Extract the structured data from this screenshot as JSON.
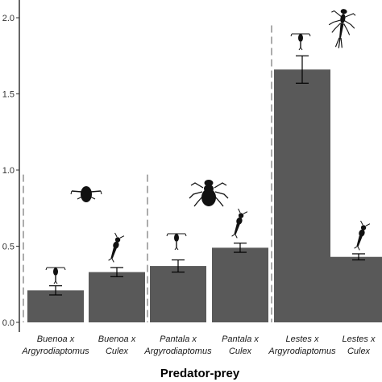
{
  "chart_data": {
    "type": "bar",
    "title": "",
    "xlabel": "Predator-prey",
    "ylabel": "",
    "ylim": [
      0,
      2.1
    ],
    "yticks": [
      "0.0",
      "0.5",
      "1.0",
      "1.5",
      "2.0"
    ],
    "ytick_values": [
      0,
      0.5,
      1.0,
      1.5,
      2.0
    ],
    "categories": [
      {
        "line1": "Buenoa x",
        "line2": "Argyrodiaptomus"
      },
      {
        "line1": "Buenoa x",
        "line2": "Culex"
      },
      {
        "line1": "Pantala x",
        "line2": "Argyrodiaptomus"
      },
      {
        "line1": "Pantala x",
        "line2": "Culex"
      },
      {
        "line1": "Lestes x",
        "line2": "Argyrodiaptomus"
      },
      {
        "line1": "Lestes x",
        "line2": "Culex"
      }
    ],
    "values": [
      0.21,
      0.33,
      0.37,
      0.49,
      1.66,
      0.43
    ],
    "errors": [
      0.03,
      0.03,
      0.04,
      0.03,
      0.09,
      0.02
    ],
    "groups": [
      {
        "predator": "Buenoa",
        "predator_icon": "backswimmer-icon"
      },
      {
        "predator": "Pantala",
        "predator_icon": "dragonfly-larva-icon"
      },
      {
        "predator": "Lestes",
        "predator_icon": "damselfly-larva-icon"
      }
    ],
    "prey_icons": [
      "copepod-icon",
      "mosquito-larva-icon",
      "copepod-icon",
      "mosquito-larva-icon",
      "copepod-icon",
      "mosquito-larva-icon"
    ],
    "grid": false,
    "colors": {
      "bar": "#595959",
      "axis": "#333333",
      "separator": "#7f7f7f",
      "silhouette": "#111111"
    }
  }
}
